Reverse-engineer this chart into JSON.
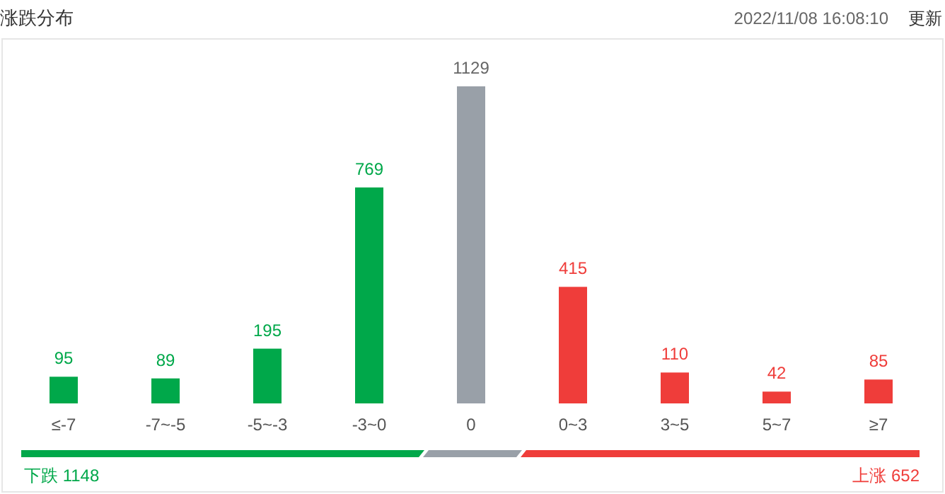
{
  "chart_data": {
    "type": "bar",
    "title": "涨跌分布",
    "categories": [
      "≤-7",
      "-7~-5",
      "-5~-3",
      "-3~0",
      "0",
      "0~3",
      "3~5",
      "5~7",
      "≥7"
    ],
    "values": [
      95,
      89,
      195,
      769,
      1129,
      415,
      110,
      42,
      85
    ],
    "colors": [
      "#00a84a",
      "#00a84a",
      "#00a84a",
      "#00a84a",
      "#99a0a8",
      "#ef3d3a",
      "#ef3d3a",
      "#ef3d3a",
      "#ef3d3a"
    ],
    "data_labels": true,
    "annotations": [
      "2022/11/08 16:08:10",
      "更新",
      "下跌 1148",
      "上涨 652"
    ]
  }
}
